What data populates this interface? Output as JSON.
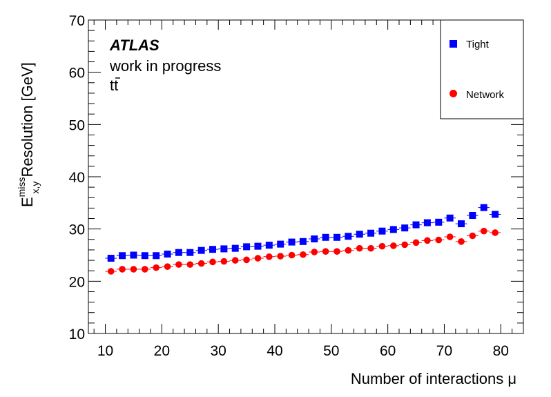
{
  "chart_data": {
    "type": "scatter",
    "title": "",
    "annotations": {
      "experiment": "ATLAS",
      "status": "work in progress",
      "process": "tt"
    },
    "xlabel": "Number of interactions μ",
    "ylabel_main": "E",
    "ylabel_sup": "miss",
    "ylabel_sub": "x,y",
    "ylabel_rest": " Resolution [GeV]",
    "xlim": [
      7,
      84
    ],
    "ylim": [
      10,
      70
    ],
    "xticks": [
      10,
      20,
      30,
      40,
      50,
      60,
      70,
      80
    ],
    "yticks": [
      10,
      20,
      30,
      40,
      50,
      60,
      70
    ],
    "grid": false,
    "legend_position": "top-right",
    "x": [
      11,
      13,
      15,
      17,
      19,
      21,
      23,
      25,
      27,
      29,
      31,
      33,
      35,
      37,
      39,
      41,
      43,
      45,
      47,
      49,
      51,
      53,
      55,
      57,
      59,
      61,
      63,
      65,
      67,
      69,
      71,
      73,
      75,
      77,
      79
    ],
    "series": [
      {
        "name": "Tight",
        "color": "#0000ff",
        "marker": "square",
        "values": [
          24.4,
          24.9,
          25.0,
          24.9,
          24.9,
          25.2,
          25.5,
          25.5,
          25.9,
          26.1,
          26.2,
          26.3,
          26.6,
          26.7,
          26.9,
          27.1,
          27.5,
          27.6,
          28.1,
          28.4,
          28.4,
          28.6,
          29.0,
          29.2,
          29.6,
          29.9,
          30.2,
          30.8,
          31.2,
          31.3,
          32.1,
          31.0,
          32.6,
          34.1,
          32.8
        ]
      },
      {
        "name": "Network",
        "color": "#ff0000",
        "marker": "circle",
        "values": [
          21.9,
          22.3,
          22.3,
          22.3,
          22.6,
          22.8,
          23.2,
          23.2,
          23.4,
          23.7,
          23.8,
          24.0,
          24.1,
          24.4,
          24.7,
          24.8,
          25.0,
          25.1,
          25.6,
          25.7,
          25.7,
          25.9,
          26.3,
          26.3,
          26.7,
          26.8,
          27.0,
          27.4,
          27.8,
          27.9,
          28.5,
          27.6,
          28.7,
          29.6,
          29.3
        ]
      }
    ]
  }
}
